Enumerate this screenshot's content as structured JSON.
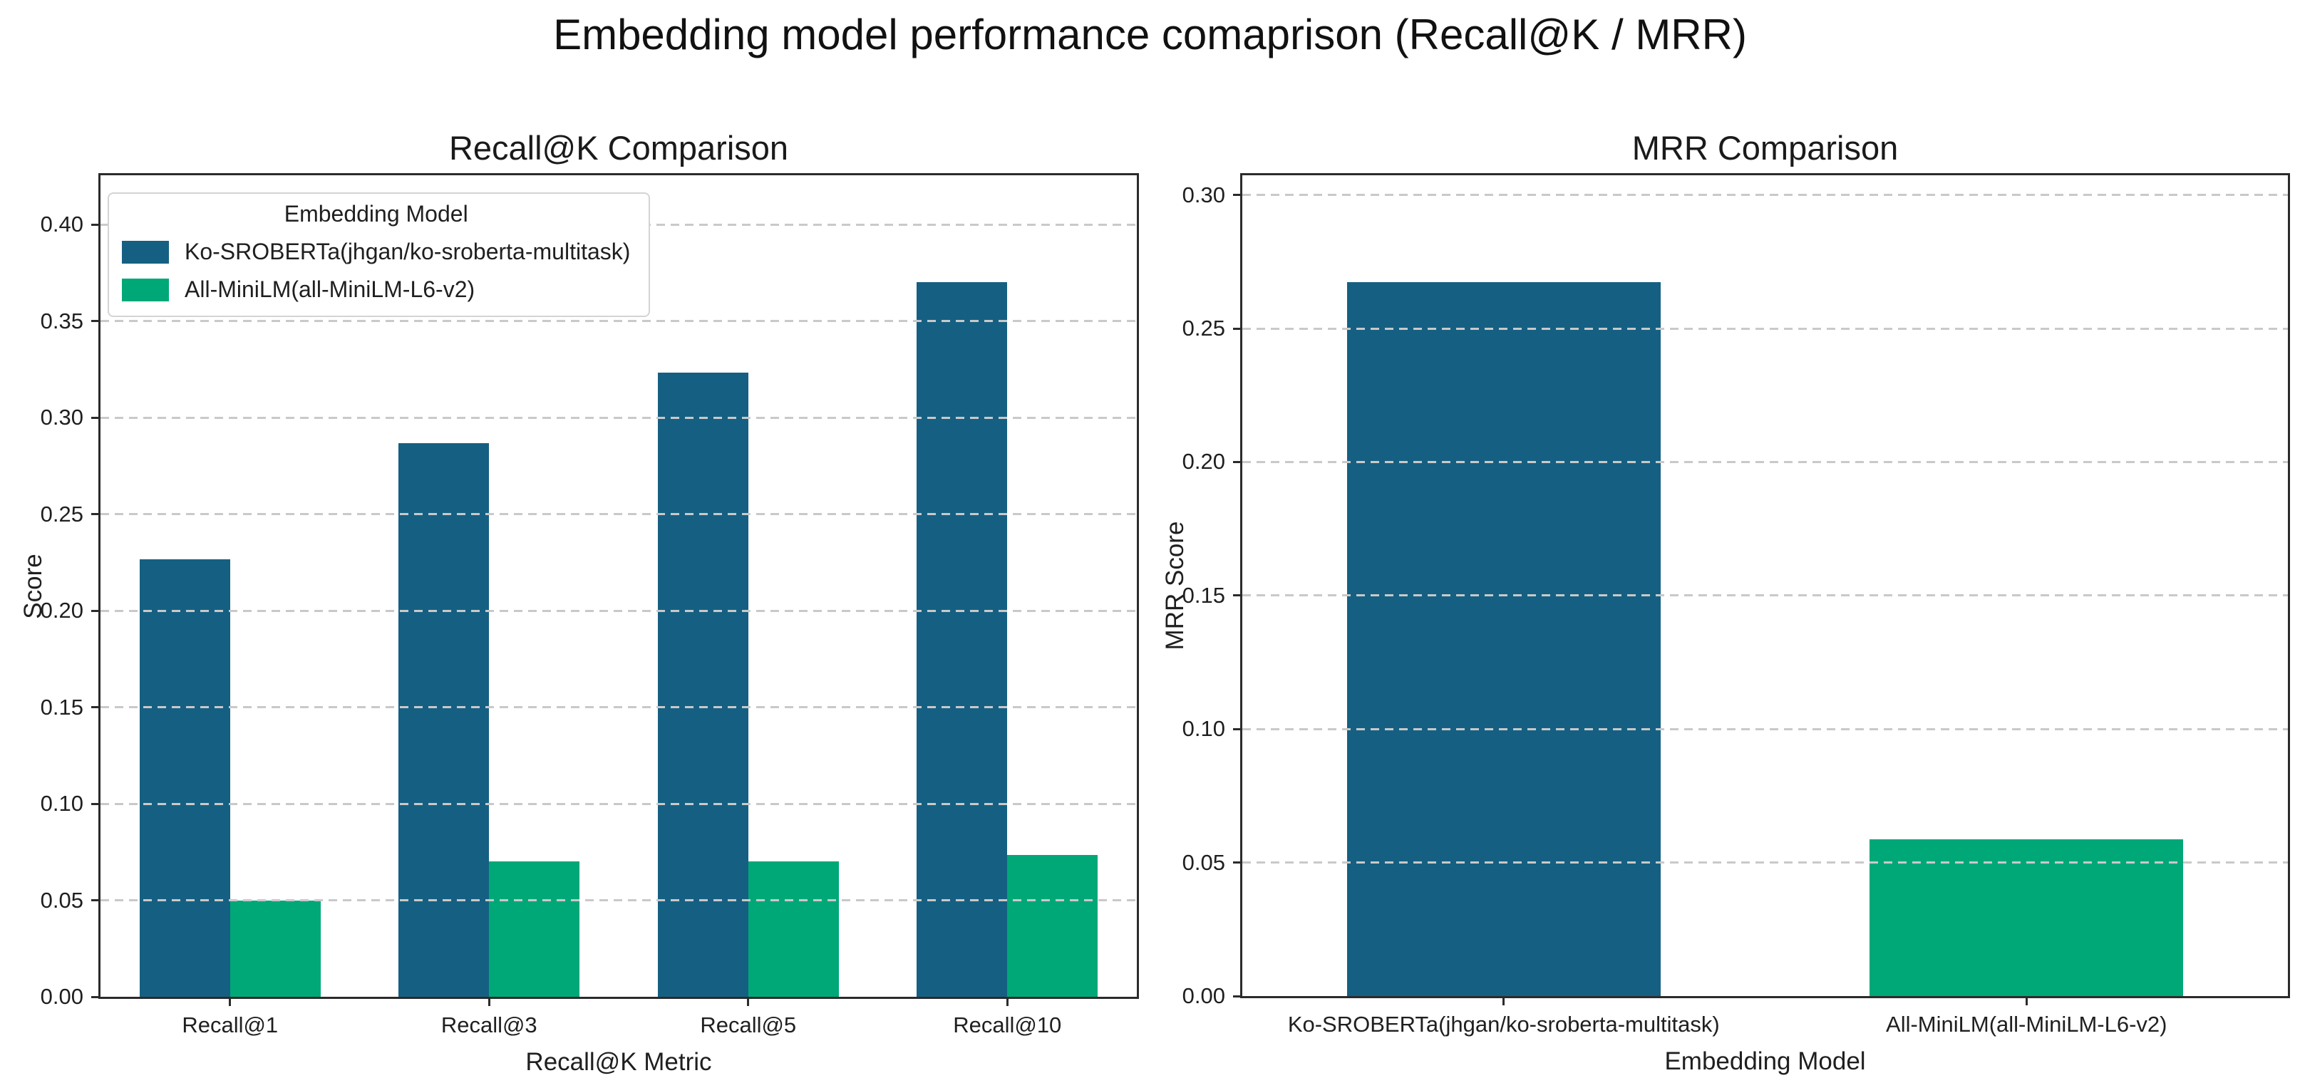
{
  "page": {
    "title": "Embedding model performance comaprison (Recall@K / MRR)"
  },
  "colors": {
    "ko_sroberta_blue": "#156082",
    "all_minilm_green": "#00a878",
    "gridline": "#c9c9c9",
    "spine": "#2b2b2b"
  },
  "chart_data": [
    {
      "type": "bar",
      "title": "Recall@K Comparison",
      "xlabel": "Recall@K Metric",
      "ylabel": "Score",
      "categories": [
        "Recall@1",
        "Recall@3",
        "Recall@5",
        "Recall@10"
      ],
      "series": [
        {
          "name": "Ko-SROBERTa(jhgan/ko-sroberta-multitask)",
          "color": "#156082",
          "values": [
            0.2267,
            0.2867,
            0.3233,
            0.37
          ]
        },
        {
          "name": "All-MiniLM(all-MiniLM-L6-v2)",
          "color": "#00a878",
          "values": [
            0.05,
            0.07,
            0.07,
            0.0733
          ]
        }
      ],
      "ylim": [
        0,
        0.4255
      ],
      "yticks": [
        "0.00",
        "0.05",
        "0.10",
        "0.15",
        "0.20",
        "0.25",
        "0.30",
        "0.35",
        "0.40"
      ],
      "bar_width": 0.35,
      "grid": "horizontal-dashed",
      "legend": {
        "title": "Embedding Model",
        "position": "upper-left"
      }
    },
    {
      "type": "bar",
      "title": "MRR Comparison",
      "xlabel": "Embedding Model",
      "ylabel": "MRR Score",
      "categories": [
        "Ko-SROBERTa(jhgan/ko-sroberta-multitask)",
        "All-MiniLM(all-MiniLM-L6-v2)"
      ],
      "series": [
        {
          "colors": [
            "#156082",
            "#00a878"
          ],
          "values": [
            0.2673,
            0.0587
          ]
        }
      ],
      "ylim": [
        0,
        0.3074
      ],
      "yticks": [
        "0.00",
        "0.05",
        "0.10",
        "0.15",
        "0.20",
        "0.25",
        "0.30"
      ],
      "bar_width": 0.6,
      "grid": "horizontal-dashed",
      "legend": null
    }
  ]
}
